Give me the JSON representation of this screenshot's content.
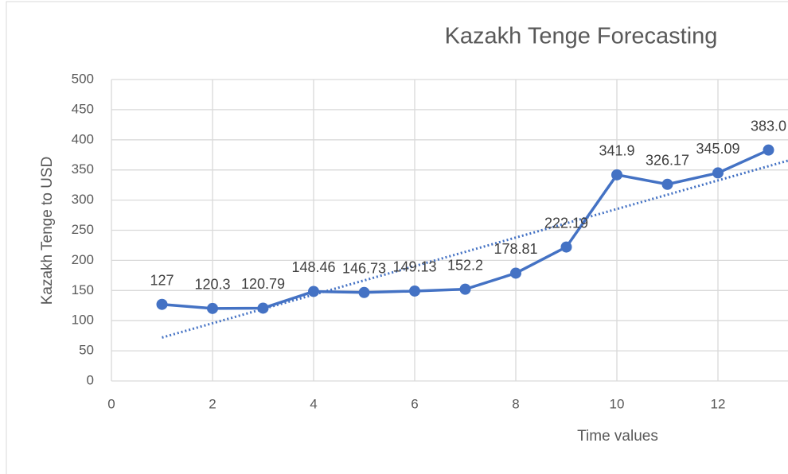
{
  "chart_data": {
    "type": "line",
    "title": "Kazakh Tenge Forecasting",
    "x_label": "Time values",
    "y_label": "Kazakh Tenge to USD",
    "x": [
      1,
      2,
      3,
      4,
      5,
      6,
      7,
      8,
      9,
      10,
      11,
      12,
      13
    ],
    "series": [
      {
        "name": "Kazakh Tenge to USD",
        "color": "#4472c4",
        "values": [
          127,
          120.3,
          120.79,
          148.46,
          146.73,
          149.13,
          152.2,
          178.81,
          222.19,
          341.9,
          326.17,
          345.09,
          383.0
        ],
        "value_labels": [
          "127",
          "120.3",
          "120.79",
          "148.46",
          "146.73",
          "149.13",
          "152.2",
          "178.81",
          "222.19",
          "341.9",
          "326.17",
          "345.09",
          "383.0"
        ]
      }
    ],
    "trendline": {
      "color": "#4472c4",
      "x": [
        1,
        14
      ],
      "values": [
        72,
        380
      ]
    },
    "xlim": [
      0,
      14
    ],
    "xticks": [
      0,
      2,
      4,
      6,
      8,
      10,
      12
    ],
    "ylim": [
      0,
      500
    ],
    "yticks": [
      0,
      50,
      100,
      150,
      200,
      250,
      300,
      350,
      400,
      450,
      500
    ],
    "grid": true
  }
}
